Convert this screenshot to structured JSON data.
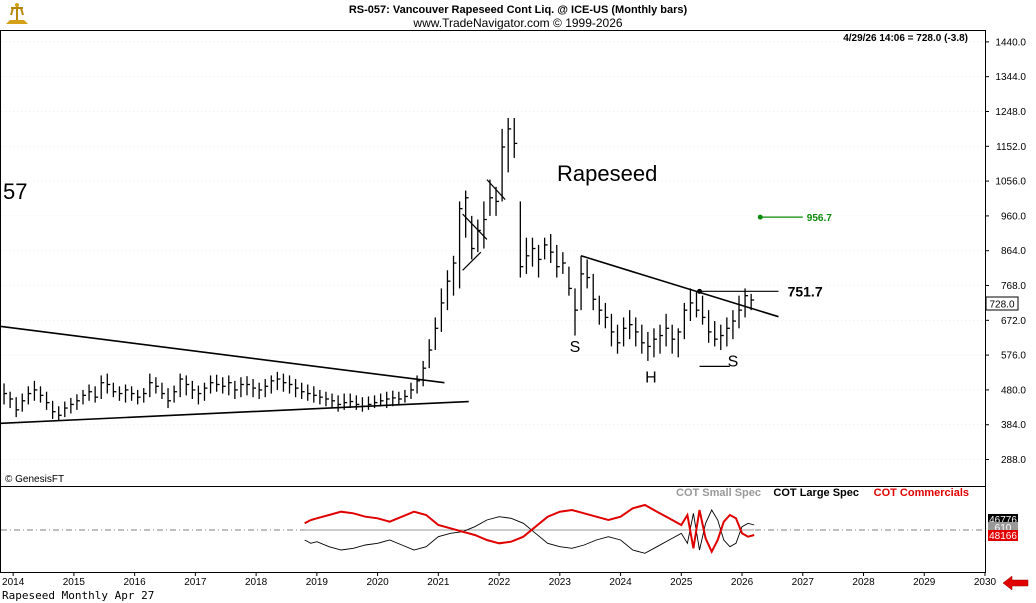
{
  "header": {
    "title": "RS-057:  Vancouver Rapeseed Cont Liq. @ ICE-US  (Monthly bars)",
    "subtitle": "www.TradeNavigator.com © 1999-2026",
    "last_quote": "4/29/26 14:06 = 728.0 (-3.8)"
  },
  "footer": {
    "caption": "Rapeseed Monthly Apr 27",
    "copyright": "© GenesisFT"
  },
  "side_label": "57",
  "colors": {
    "bars": "#000000",
    "commercials": "#e00000",
    "target_line": "#0a8a0a",
    "grid": "#d8d8d8"
  },
  "chart_data": [
    {
      "type": "bar",
      "name": "price",
      "title": "Rapeseed",
      "y_axis_ticks": [
        288.0,
        384.0,
        480.0,
        576.0,
        672.0,
        768.0,
        864.0,
        960.0,
        1056.0,
        1152.0,
        1248.0,
        1344.0,
        1440.0
      ],
      "ylim": [
        215,
        1470
      ],
      "x_axis_ticks": [
        "2014",
        "2015",
        "2016",
        "2017",
        "2018",
        "2019",
        "2020",
        "2021",
        "2022",
        "2023",
        "2024",
        "2025",
        "2026",
        "2027",
        "2028",
        "2029",
        "2030"
      ],
      "xlim": [
        2013.8,
        2030.0
      ],
      "last_price_label": "728.0",
      "annotations": [
        {
          "text": "S",
          "x": 2023.25,
          "y": 585
        },
        {
          "text": "H",
          "x": 2024.5,
          "y": 500
        },
        {
          "text": "S",
          "x": 2025.85,
          "y": 545
        },
        {
          "text": "751.7",
          "x": 2026.75,
          "y": 751.7,
          "kind": "neckline_level"
        },
        {
          "text": "956.7",
          "x": 2027.0,
          "y": 956.7,
          "kind": "target"
        }
      ],
      "lines": [
        {
          "name": "lower-trend",
          "points": [
            [
              2013.8,
              388
            ],
            [
              2021.5,
              448
            ]
          ]
        },
        {
          "name": "upper-trend",
          "points": [
            [
              2013.8,
              655
            ],
            [
              2021.1,
              500
            ]
          ]
        },
        {
          "name": "neckline-slope",
          "points": [
            [
              2023.35,
              850
            ],
            [
              2026.6,
              682
            ]
          ]
        },
        {
          "name": "neckline-level",
          "points": [
            [
              2025.3,
              752
            ],
            [
              2026.6,
              752
            ]
          ]
        },
        {
          "name": "right-shoulder-base",
          "points": [
            [
              2025.3,
              545
            ],
            [
              2025.8,
              545
            ]
          ]
        },
        {
          "name": "flag-1-top",
          "points": [
            [
              2021.4,
              965
            ],
            [
              2021.8,
              895
            ]
          ]
        },
        {
          "name": "flag-1-bottom",
          "points": [
            [
              2021.4,
              810
            ],
            [
              2021.7,
              860
            ]
          ]
        },
        {
          "name": "flag-2-top",
          "points": [
            [
              2021.8,
              1060
            ],
            [
              2022.1,
              1005
            ]
          ]
        },
        {
          "name": "target-line",
          "points": [
            [
              2026.3,
              956.7
            ],
            [
              2027.0,
              956.7
            ]
          ]
        }
      ],
      "bars": [
        [
          2013.85,
          440,
          498,
          470
        ],
        [
          2013.95,
          430,
          475,
          455
        ],
        [
          2014.05,
          405,
          460,
          425
        ],
        [
          2014.15,
          420,
          470,
          450
        ],
        [
          2014.25,
          440,
          490,
          470
        ],
        [
          2014.35,
          450,
          505,
          480
        ],
        [
          2014.45,
          445,
          490,
          465
        ],
        [
          2014.55,
          425,
          475,
          445
        ],
        [
          2014.65,
          400,
          450,
          420
        ],
        [
          2014.75,
          395,
          435,
          410
        ],
        [
          2014.85,
          405,
          448,
          430
        ],
        [
          2014.95,
          415,
          458,
          440
        ],
        [
          2015.05,
          425,
          468,
          450
        ],
        [
          2015.15,
          440,
          480,
          465
        ],
        [
          2015.25,
          450,
          495,
          475
        ],
        [
          2015.35,
          445,
          490,
          460
        ],
        [
          2015.45,
          455,
          520,
          500
        ],
        [
          2015.55,
          470,
          525,
          495
        ],
        [
          2015.65,
          460,
          500,
          475
        ],
        [
          2015.75,
          450,
          490,
          470
        ],
        [
          2015.85,
          445,
          495,
          480
        ],
        [
          2015.95,
          450,
          490,
          470
        ],
        [
          2016.05,
          440,
          480,
          460
        ],
        [
          2016.15,
          445,
          485,
          470
        ],
        [
          2016.25,
          460,
          525,
          500
        ],
        [
          2016.35,
          470,
          515,
          490
        ],
        [
          2016.45,
          455,
          500,
          470
        ],
        [
          2016.55,
          430,
          485,
          450
        ],
        [
          2016.65,
          445,
          492,
          475
        ],
        [
          2016.75,
          460,
          525,
          510
        ],
        [
          2016.85,
          465,
          520,
          495
        ],
        [
          2016.95,
          455,
          505,
          480
        ],
        [
          2017.05,
          440,
          492,
          470
        ],
        [
          2017.15,
          450,
          500,
          485
        ],
        [
          2017.25,
          470,
          520,
          500
        ],
        [
          2017.35,
          475,
          522,
          495
        ],
        [
          2017.45,
          470,
          515,
          490
        ],
        [
          2017.55,
          465,
          520,
          500
        ],
        [
          2017.65,
          455,
          505,
          480
        ],
        [
          2017.75,
          460,
          515,
          495
        ],
        [
          2017.85,
          465,
          518,
          495
        ],
        [
          2017.95,
          460,
          510,
          485
        ],
        [
          2018.05,
          455,
          500,
          480
        ],
        [
          2018.15,
          460,
          510,
          490
        ],
        [
          2018.25,
          470,
          520,
          505
        ],
        [
          2018.35,
          480,
          530,
          510
        ],
        [
          2018.45,
          475,
          525,
          500
        ],
        [
          2018.55,
          470,
          520,
          495
        ],
        [
          2018.65,
          460,
          510,
          485
        ],
        [
          2018.75,
          455,
          500,
          475
        ],
        [
          2018.85,
          450,
          495,
          470
        ],
        [
          2018.95,
          445,
          490,
          465
        ],
        [
          2019.05,
          440,
          480,
          460
        ],
        [
          2019.15,
          435,
          475,
          455
        ],
        [
          2019.25,
          430,
          470,
          450
        ],
        [
          2019.35,
          420,
          465,
          440
        ],
        [
          2019.45,
          425,
          470,
          445
        ],
        [
          2019.55,
          430,
          470,
          448
        ],
        [
          2019.65,
          425,
          465,
          440
        ],
        [
          2019.75,
          420,
          460,
          435
        ],
        [
          2019.85,
          425,
          462,
          440
        ],
        [
          2019.95,
          430,
          465,
          445
        ],
        [
          2020.05,
          435,
          470,
          450
        ],
        [
          2020.15,
          430,
          475,
          455
        ],
        [
          2020.25,
          435,
          478,
          458
        ],
        [
          2020.35,
          440,
          475,
          455
        ],
        [
          2020.45,
          445,
          480,
          462
        ],
        [
          2020.55,
          455,
          500,
          480
        ],
        [
          2020.65,
          470,
          520,
          505
        ],
        [
          2020.75,
          490,
          560,
          540
        ],
        [
          2020.85,
          540,
          620,
          590
        ],
        [
          2020.95,
          590,
          680,
          650
        ],
        [
          2021.05,
          640,
          760,
          720
        ],
        [
          2021.15,
          700,
          810,
          780
        ],
        [
          2021.25,
          740,
          850,
          830
        ],
        [
          2021.35,
          760,
          1000,
          980
        ],
        [
          2021.45,
          900,
          1030,
          1010
        ],
        [
          2021.55,
          840,
          960,
          870
        ],
        [
          2021.65,
          860,
          950,
          920
        ],
        [
          2021.75,
          870,
          1000,
          950
        ],
        [
          2021.85,
          960,
          1060,
          1010
        ],
        [
          2021.95,
          960,
          1040,
          1000
        ],
        [
          2022.05,
          1000,
          1200,
          1150
        ],
        [
          2022.15,
          1080,
          1230,
          1200
        ],
        [
          2022.25,
          1120,
          1230,
          1160
        ],
        [
          2022.35,
          790,
          1000,
          820
        ],
        [
          2022.45,
          800,
          900,
          850
        ],
        [
          2022.55,
          820,
          900,
          870
        ],
        [
          2022.65,
          790,
          880,
          840
        ],
        [
          2022.75,
          840,
          900,
          880
        ],
        [
          2022.85,
          830,
          910,
          860
        ],
        [
          2022.95,
          790,
          880,
          820
        ],
        [
          2023.05,
          800,
          860,
          830
        ],
        [
          2023.15,
          740,
          820,
          760
        ],
        [
          2023.25,
          630,
          760,
          700
        ],
        [
          2023.35,
          700,
          850,
          800
        ],
        [
          2023.45,
          760,
          840,
          790
        ],
        [
          2023.55,
          700,
          800,
          730
        ],
        [
          2023.65,
          660,
          740,
          700
        ],
        [
          2023.75,
          650,
          720,
          680
        ],
        [
          2023.85,
          600,
          690,
          640
        ],
        [
          2023.95,
          580,
          660,
          610
        ],
        [
          2024.05,
          600,
          680,
          650
        ],
        [
          2024.15,
          620,
          700,
          660
        ],
        [
          2024.25,
          600,
          680,
          640
        ],
        [
          2024.35,
          580,
          660,
          610
        ],
        [
          2024.45,
          560,
          640,
          600
        ],
        [
          2024.55,
          570,
          650,
          620
        ],
        [
          2024.65,
          580,
          660,
          630
        ],
        [
          2024.75,
          600,
          690,
          650
        ],
        [
          2024.85,
          580,
          660,
          620
        ],
        [
          2024.95,
          570,
          650,
          640
        ],
        [
          2025.05,
          620,
          720,
          700
        ],
        [
          2025.15,
          670,
          760,
          720
        ],
        [
          2025.25,
          680,
          750,
          700
        ],
        [
          2025.35,
          660,
          740,
          680
        ],
        [
          2025.45,
          610,
          700,
          640
        ],
        [
          2025.55,
          600,
          670,
          620
        ],
        [
          2025.65,
          590,
          660,
          630
        ],
        [
          2025.75,
          600,
          680,
          650
        ],
        [
          2025.85,
          620,
          700,
          670
        ],
        [
          2025.95,
          650,
          740,
          700
        ],
        [
          2026.05,
          680,
          760,
          740
        ],
        [
          2026.15,
          700,
          745,
          728
        ]
      ]
    },
    {
      "type": "line",
      "name": "cot",
      "legend": [
        "COT Small Spec",
        "COT Large Spec",
        "COT Commercials"
      ],
      "value_labels": [
        "46776",
        "610",
        "48166"
      ],
      "series": [
        {
          "name": "COT Small Spec",
          "color": "#999999",
          "x": [
            2018.8,
            2019.3,
            2019.8,
            2020.3,
            2020.8,
            2021.3,
            2021.8,
            2022.3,
            2022.8,
            2023.3,
            2023.8,
            2024.3,
            2024.8,
            2025.3,
            2025.8,
            2026.2
          ],
          "values": [
            0,
            0,
            0,
            0,
            0,
            0,
            0,
            0,
            0,
            0,
            0,
            0,
            0,
            0,
            0,
            0
          ]
        },
        {
          "name": "COT Large Spec",
          "color": "#000000",
          "x": [
            2018.8,
            2018.9,
            2019.0,
            2019.2,
            2019.4,
            2019.6,
            2019.8,
            2020.0,
            2020.2,
            2020.4,
            2020.6,
            2020.8,
            2021.0,
            2021.2,
            2021.4,
            2021.6,
            2021.8,
            2022.0,
            2022.2,
            2022.4,
            2022.6,
            2022.8,
            2023.0,
            2023.2,
            2023.4,
            2023.6,
            2023.8,
            2024.0,
            2024.2,
            2024.4,
            2024.6,
            2024.8,
            2025.0,
            2025.1,
            2025.2,
            2025.3,
            2025.4,
            2025.5,
            2025.6,
            2025.7,
            2025.8,
            2025.9,
            2026.0,
            2026.1,
            2026.2
          ],
          "values": [
            -30,
            -40,
            -35,
            -50,
            -60,
            -55,
            -45,
            -40,
            -30,
            -45,
            -60,
            -50,
            -20,
            -10,
            -5,
            10,
            30,
            40,
            35,
            20,
            -10,
            -40,
            -50,
            -55,
            -45,
            -30,
            -20,
            -30,
            -60,
            -70,
            -50,
            -30,
            -10,
            -40,
            50,
            -60,
            20,
            60,
            30,
            -30,
            -50,
            -40,
            10,
            20,
            15
          ]
        },
        {
          "name": "COT Commercials",
          "color": "#e00000",
          "x": [
            2018.8,
            2018.9,
            2019.0,
            2019.2,
            2019.4,
            2019.6,
            2019.8,
            2020.0,
            2020.2,
            2020.4,
            2020.6,
            2020.8,
            2021.0,
            2021.2,
            2021.4,
            2021.6,
            2021.8,
            2022.0,
            2022.2,
            2022.4,
            2022.6,
            2022.8,
            2023.0,
            2023.2,
            2023.4,
            2023.6,
            2023.8,
            2024.0,
            2024.2,
            2024.4,
            2024.6,
            2024.8,
            2025.0,
            2025.1,
            2025.2,
            2025.3,
            2025.4,
            2025.5,
            2025.6,
            2025.7,
            2025.8,
            2025.9,
            2026.0,
            2026.1,
            2026.2
          ],
          "values": [
            20,
            30,
            35,
            45,
            55,
            50,
            40,
            35,
            25,
            40,
            55,
            45,
            15,
            5,
            -5,
            -15,
            -30,
            -40,
            -35,
            -20,
            10,
            40,
            55,
            60,
            50,
            40,
            30,
            40,
            65,
            75,
            55,
            35,
            15,
            45,
            -55,
            60,
            -25,
            -65,
            -30,
            25,
            45,
            35,
            -10,
            -20,
            -15
          ]
        }
      ],
      "ylim": [
        -90,
        90
      ]
    }
  ]
}
